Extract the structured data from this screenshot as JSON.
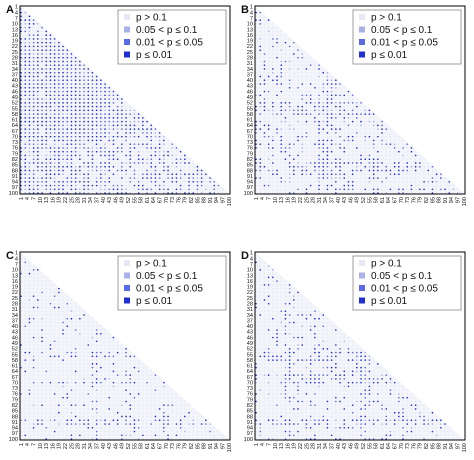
{
  "legend": {
    "items": [
      {
        "label": "p > 0.1",
        "color": "#e6e8f6"
      },
      {
        "label": "0.05 < p ≤ 0.1",
        "color": "#a9b1ea"
      },
      {
        "label": "0.01 < p ≤ 0.05",
        "color": "#5a6ae2"
      },
      {
        "label": "p ≤ 0.01",
        "color": "#1f2fd0"
      }
    ]
  },
  "chart_data": [
    {
      "type": "heatmap",
      "panel_label": "A",
      "title": "",
      "xlabel": "",
      "ylabel": "",
      "shape": "lower-triangular matrix of pairwise p-values",
      "matrix_size": 100,
      "xlim": [
        1,
        100
      ],
      "ylim": [
        1,
        100
      ],
      "y_tick_labels": [
        "1",
        "4",
        "7",
        "10",
        "13",
        "16",
        "19",
        "22",
        "25",
        "28",
        "31",
        "34",
        "37",
        "40",
        "43",
        "46",
        "49",
        "52",
        "55",
        "58",
        "61",
        "64",
        "67",
        "70",
        "73",
        "76",
        "79",
        "82",
        "85",
        "88",
        "91",
        "94",
        "97",
        "100"
      ],
      "x_tick_labels": [
        "1",
        "4",
        "7",
        "10",
        "13",
        "16",
        "19",
        "22",
        "25",
        "28",
        "31",
        "34",
        "37",
        "40",
        "43",
        "46",
        "49",
        "52",
        "55",
        "58",
        "61",
        "64",
        "67",
        "70",
        "73",
        "76",
        "79",
        "82",
        "85",
        "88",
        "91",
        "94",
        "97",
        "100"
      ],
      "legend_placement": "top-right",
      "pattern": "dense significant (p ≤ 0.05) cells across most of the triangle, strongest in rows 19–70 and columns 1–40"
    },
    {
      "type": "heatmap",
      "panel_label": "B",
      "title": "",
      "xlabel": "",
      "ylabel": "",
      "shape": "lower-triangular matrix of pairwise p-values",
      "matrix_size": 100,
      "xlim": [
        1,
        100
      ],
      "ylim": [
        1,
        100
      ],
      "y_tick_labels": [
        "1",
        "4",
        "7",
        "10",
        "13",
        "16",
        "19",
        "22",
        "25",
        "28",
        "31",
        "34",
        "37",
        "40",
        "43",
        "46",
        "49",
        "52",
        "55",
        "58",
        "61",
        "64",
        "67",
        "70",
        "73",
        "76",
        "79",
        "82",
        "85",
        "88",
        "91",
        "94",
        "97",
        "100"
      ],
      "x_tick_labels": [
        "1",
        "4",
        "7",
        "10",
        "13",
        "16",
        "19",
        "22",
        "25",
        "28",
        "31",
        "34",
        "37",
        "40",
        "43",
        "46",
        "49",
        "52",
        "55",
        "58",
        "61",
        "64",
        "67",
        "70",
        "73",
        "76",
        "79",
        "82",
        "85",
        "88",
        "91",
        "94",
        "97",
        "100"
      ],
      "legend_placement": "top-right",
      "pattern": "moderate density of significant cells, horizontal bands near rows 52–58 and 85–88"
    },
    {
      "type": "heatmap",
      "panel_label": "C",
      "title": "",
      "xlabel": "",
      "ylabel": "",
      "shape": "lower-triangular matrix of pairwise p-values",
      "matrix_size": 100,
      "xlim": [
        1,
        100
      ],
      "ylim": [
        1,
        100
      ],
      "y_tick_labels": [
        "1",
        "4",
        "7",
        "10",
        "13",
        "16",
        "19",
        "22",
        "25",
        "28",
        "31",
        "34",
        "37",
        "40",
        "43",
        "46",
        "49",
        "52",
        "55",
        "58",
        "61",
        "64",
        "67",
        "70",
        "73",
        "76",
        "79",
        "82",
        "85",
        "88",
        "91",
        "94",
        "97",
        "100"
      ],
      "x_tick_labels": [
        "1",
        "4",
        "7",
        "10",
        "13",
        "16",
        "19",
        "22",
        "25",
        "28",
        "31",
        "34",
        "37",
        "40",
        "43",
        "46",
        "49",
        "52",
        "55",
        "58",
        "61",
        "64",
        "67",
        "70",
        "73",
        "76",
        "79",
        "82",
        "85",
        "88",
        "91",
        "94",
        "97",
        "100"
      ],
      "legend_placement": "top-right",
      "pattern": "sparse significant cells with strong horizontal/vertical lines near rows 55, 70 and 91"
    },
    {
      "type": "heatmap",
      "panel_label": "D",
      "title": "",
      "xlabel": "",
      "ylabel": "",
      "shape": "lower-triangular matrix of pairwise p-values",
      "matrix_size": 100,
      "xlim": [
        1,
        100
      ],
      "ylim": [
        1,
        100
      ],
      "y_tick_labels": [
        "1",
        "4",
        "7",
        "10",
        "13",
        "16",
        "19",
        "22",
        "25",
        "28",
        "31",
        "34",
        "37",
        "40",
        "43",
        "46",
        "49",
        "52",
        "55",
        "58",
        "61",
        "64",
        "67",
        "70",
        "73",
        "76",
        "79",
        "82",
        "85",
        "88",
        "91",
        "94",
        "97",
        "100"
      ],
      "x_tick_labels": [
        "1",
        "4",
        "7",
        "10",
        "13",
        "16",
        "19",
        "22",
        "25",
        "28",
        "31",
        "34",
        "37",
        "40",
        "43",
        "46",
        "49",
        "52",
        "55",
        "58",
        "61",
        "64",
        "67",
        "70",
        "73",
        "76",
        "79",
        "82",
        "85",
        "88",
        "91",
        "94",
        "97",
        "100"
      ],
      "legend_placement": "top-right",
      "pattern": "sparse to moderate significant cells scattered throughout, bands near rows 55–70 and 91"
    }
  ]
}
